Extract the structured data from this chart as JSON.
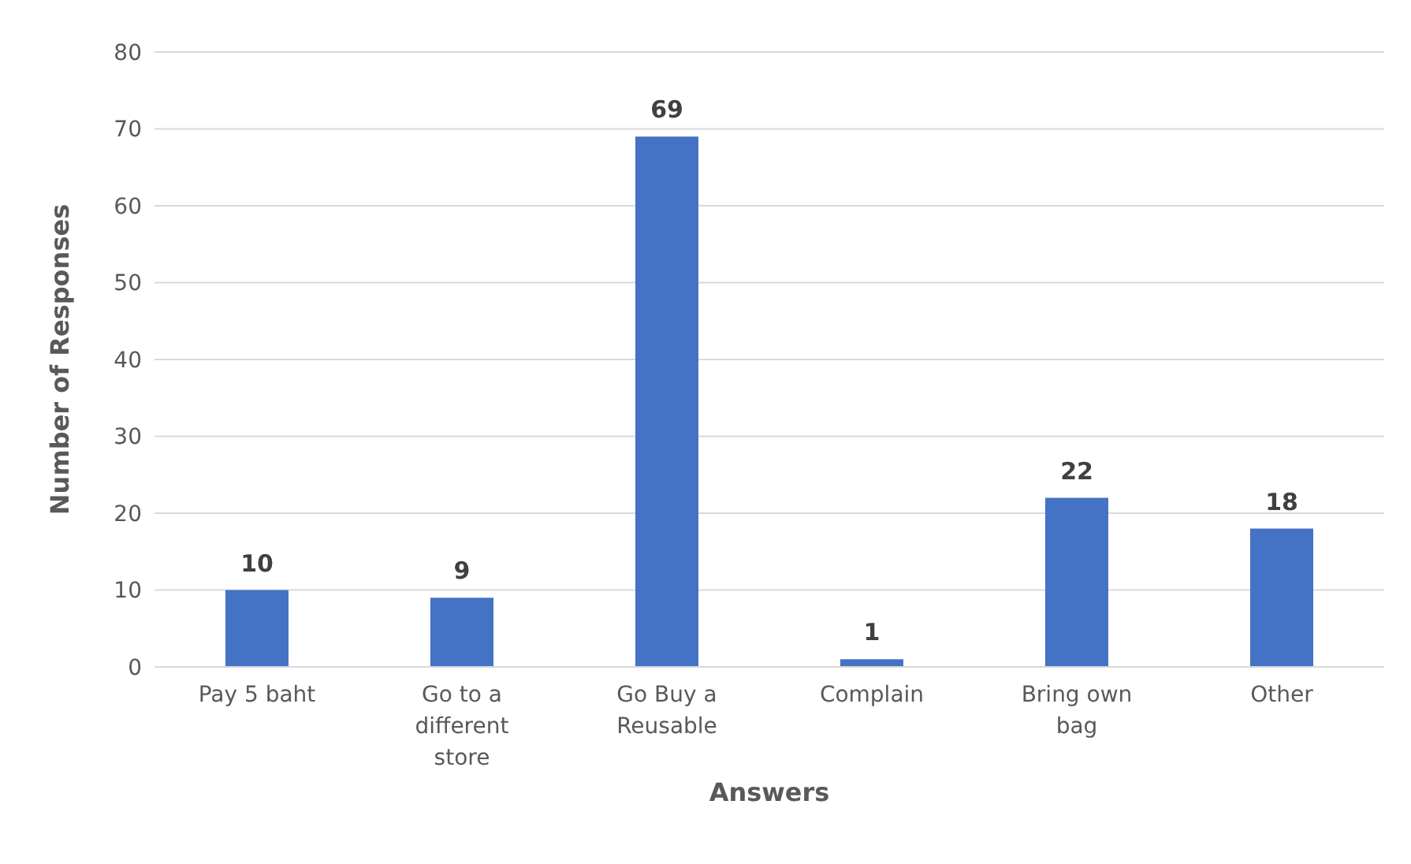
{
  "chart_data": {
    "type": "bar",
    "xlabel": "Answers",
    "ylabel": "Number of Responses",
    "categories": [
      "Pay 5 baht",
      "Go to a different store",
      "Go Buy a Reusable",
      "Complain",
      "Bring own bag",
      "Other"
    ],
    "values": [
      10,
      9,
      69,
      1,
      22,
      18
    ],
    "color": "#4472c4",
    "ylim": [
      0,
      80
    ],
    "yticks": [
      0,
      10,
      20,
      30,
      40,
      50,
      60,
      70,
      80
    ],
    "grid": "y",
    "data_labels": true
  }
}
